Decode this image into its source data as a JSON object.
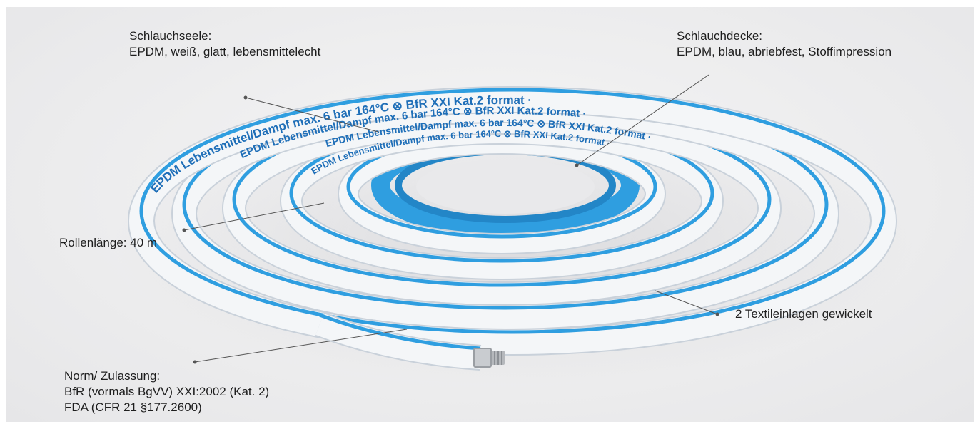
{
  "colors": {
    "background": "#ececed",
    "hose_white": "#f4f6f8",
    "hose_shadow": "#cfd6de",
    "hose_blue": "#2f9ee0",
    "print_blue": "#1f6fb8",
    "leader_line": "#555555",
    "label_text": "#1e1e1e"
  },
  "hose": {
    "print_text": "EPDM Lebensmittel/Dampf max. 6 bar 164°C ⊗ BfR XXI Kat.2 format ·"
  },
  "callouts": {
    "schlauchseele": {
      "title": "Schlauchseele:",
      "description": "EPDM, weiß, glatt, lebensmittelecht"
    },
    "schlauchdecke": {
      "title": "Schlauchdecke:",
      "description": "EPDM, blau, abriebfest, Stoffimpression"
    },
    "rollenlaenge": {
      "text": "Rollenlänge: 40 m"
    },
    "textileinlagen": {
      "text": "2 Textileinlagen gewickelt"
    },
    "norm": {
      "title": "Norm/ Zulassung:",
      "line1": "BfR (vormals BgVV) XXI:2002 (Kat. 2)",
      "line2": "FDA (CFR 21 §177.2600)"
    }
  }
}
